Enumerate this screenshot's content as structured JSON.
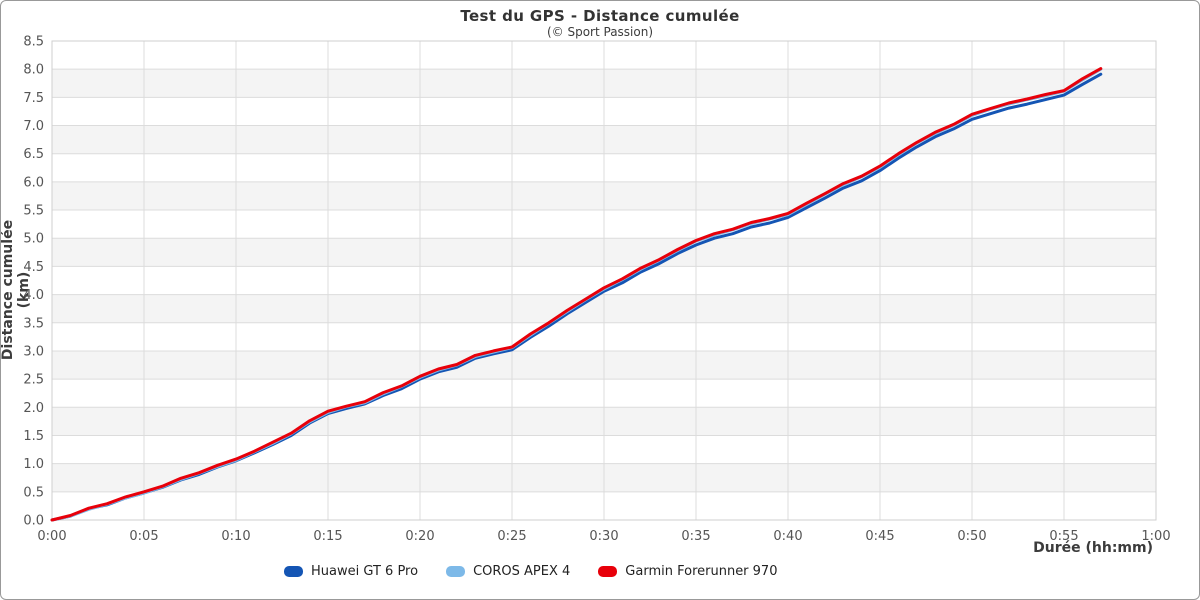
{
  "title": "Test du GPS - Distance cumulée",
  "subtitle": "(© Sport Passion)",
  "chart_data": {
    "type": "line",
    "title": "Test du GPS - Distance cumulée",
    "subtitle": "(© Sport Passion)",
    "xlabel": "Durée (hh:mm)",
    "ylabel": "Distance cumulée (km)",
    "x_unit": "minutes",
    "xlim": [
      0,
      60
    ],
    "ylim": [
      0,
      8.5
    ],
    "x_tick_step_minutes": 5,
    "y_tick_step_km": 0.5,
    "x_ticks": [
      "0:00",
      "0:05",
      "0:10",
      "0:15",
      "0:20",
      "0:25",
      "0:30",
      "0:35",
      "0:40",
      "0:45",
      "0:50",
      "0:55",
      "1:00"
    ],
    "y_ticks": [
      "0.0",
      "0.5",
      "1.0",
      "1.5",
      "2.0",
      "2.5",
      "3.0",
      "3.5",
      "4.0",
      "4.5",
      "5.0",
      "5.5",
      "6.0",
      "6.5",
      "7.0",
      "7.5",
      "8.0",
      "8.5"
    ],
    "grid": true,
    "alternating_bands": true,
    "legend_position": "bottom",
    "band_color": "#f4f4f4",
    "grid_color": "#dcdcdc",
    "border_color": "#cfcfcf",
    "tick_color": "#555555",
    "x": [
      0,
      1,
      2,
      3,
      4,
      5,
      6,
      7,
      8,
      9,
      10,
      11,
      12,
      13,
      14,
      15,
      16,
      17,
      18,
      19,
      20,
      21,
      22,
      23,
      24,
      25,
      26,
      27,
      28,
      29,
      30,
      31,
      32,
      33,
      34,
      35,
      36,
      37,
      38,
      39,
      40,
      41,
      42,
      43,
      44,
      45,
      46,
      47,
      48,
      49,
      50,
      51,
      52,
      53,
      54,
      55,
      56,
      57
    ],
    "series": [
      {
        "name": "Huawei GT 6 Pro",
        "color": "#1455b4",
        "values": [
          0.0,
          0.07,
          0.2,
          0.27,
          0.39,
          0.48,
          0.58,
          0.71,
          0.81,
          0.94,
          1.05,
          1.19,
          1.34,
          1.5,
          1.72,
          1.89,
          1.98,
          2.06,
          2.21,
          2.33,
          2.5,
          2.63,
          2.71,
          2.87,
          2.95,
          3.02,
          3.24,
          3.44,
          3.66,
          3.86,
          4.06,
          4.21,
          4.4,
          4.55,
          4.73,
          4.88,
          5.0,
          5.08,
          5.2,
          5.27,
          5.37,
          5.54,
          5.71,
          5.89,
          6.02,
          6.2,
          6.42,
          6.62,
          6.8,
          6.94,
          7.11,
          7.21,
          7.31,
          7.38,
          7.46,
          7.54,
          7.73,
          7.91
        ]
      },
      {
        "name": "COROS APEX 4",
        "color": "#7db9e8",
        "values": [
          0.0,
          0.07,
          0.19,
          0.28,
          0.39,
          0.48,
          0.59,
          0.72,
          0.83,
          0.95,
          1.06,
          1.21,
          1.36,
          1.53,
          1.74,
          1.91,
          2.01,
          2.08,
          2.24,
          2.37,
          2.53,
          2.66,
          2.75,
          2.9,
          2.98,
          3.06,
          3.28,
          3.49,
          3.7,
          3.91,
          4.1,
          4.27,
          4.45,
          4.61,
          4.78,
          4.95,
          5.06,
          5.15,
          5.26,
          5.34,
          5.42,
          5.6,
          5.78,
          5.95,
          6.09,
          6.26,
          6.48,
          6.69,
          6.86,
          7.01,
          7.18,
          7.29,
          7.38,
          7.46,
          7.53,
          7.61,
          7.81,
          8.0
        ]
      },
      {
        "name": "Garmin Forerunner 970",
        "color": "#e8000a",
        "values": [
          0.0,
          0.08,
          0.21,
          0.29,
          0.41,
          0.5,
          0.6,
          0.74,
          0.84,
          0.97,
          1.08,
          1.22,
          1.38,
          1.54,
          1.76,
          1.93,
          2.02,
          2.1,
          2.26,
          2.38,
          2.55,
          2.68,
          2.76,
          2.92,
          3.0,
          3.07,
          3.3,
          3.5,
          3.72,
          3.92,
          4.12,
          4.28,
          4.47,
          4.62,
          4.8,
          4.96,
          5.08,
          5.16,
          5.28,
          5.35,
          5.44,
          5.62,
          5.79,
          5.97,
          6.1,
          6.28,
          6.5,
          6.7,
          6.88,
          7.02,
          7.2,
          7.3,
          7.4,
          7.47,
          7.55,
          7.62,
          7.83,
          8.01
        ]
      }
    ]
  }
}
